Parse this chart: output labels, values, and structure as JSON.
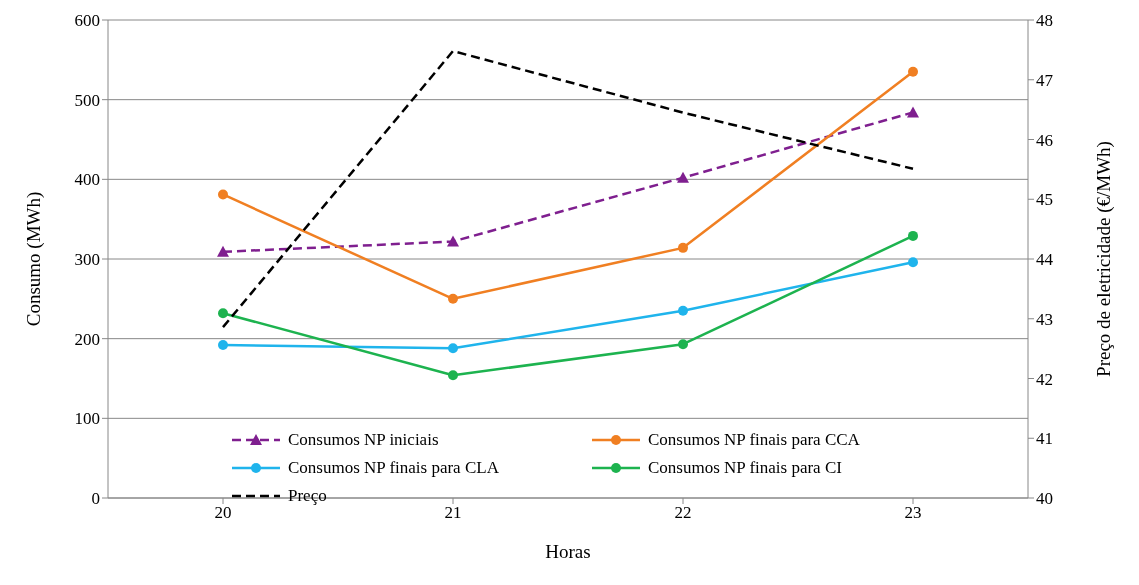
{
  "chart_data": {
    "type": "line",
    "xlabel": "Horas",
    "ylabel": "Consumo (MWh)",
    "y2label": "Preço de eletricidade (€/MWh)",
    "categories": [
      "20",
      "21",
      "22",
      "23"
    ],
    "ylim": [
      0,
      600
    ],
    "yticks": [
      0,
      100,
      200,
      300,
      400,
      500,
      600
    ],
    "y2lim": [
      40,
      48
    ],
    "y2ticks": [
      40,
      41,
      42,
      43,
      44,
      45,
      46,
      47,
      48
    ],
    "grid": "y",
    "legend": "bottom",
    "series": [
      {
        "name": "Consumos NP iniciais",
        "color": "#7f1f8f",
        "values": [
          309,
          322,
          402,
          484
        ],
        "marker": "triangle",
        "line_style": "dashed"
      },
      {
        "name": "Consumos NP finais para CCA",
        "color": "#f07f22",
        "values": [
          381,
          250,
          314,
          535
        ],
        "marker": "circle",
        "line_style": "solid"
      },
      {
        "name": "Consumos NP finais para CLA",
        "color": "#1fb4ec",
        "values": [
          192,
          188,
          235,
          296
        ],
        "marker": "circle",
        "line_style": "solid"
      },
      {
        "name": "Consumos NP finais para CI",
        "color": "#1db34f",
        "values": [
          232,
          154,
          193,
          329
        ],
        "marker": "circle",
        "line_style": "solid"
      },
      {
        "name": "Preço",
        "color": "#000000",
        "values": [
          42.86,
          47.48,
          46.45,
          45.51
        ],
        "axis": "y2",
        "marker": "none",
        "line_style": "dashed"
      }
    ]
  }
}
